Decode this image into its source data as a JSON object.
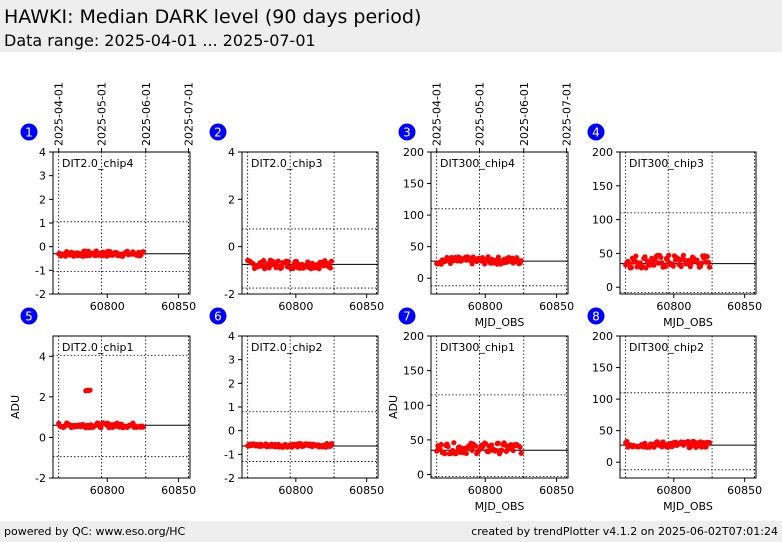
{
  "header": {
    "title": "HAWKI: Median DARK level (90 days period)",
    "subtitle": "Data range: 2025-04-01 ... 2025-07-01"
  },
  "footer": {
    "left": "powered by QC: www.eso.org/HC",
    "right": "created by trendPlotter v4.1.2 on 2025-06-02T07:01:24"
  },
  "colors": {
    "points": "#ff0000",
    "badge": "#0000ff",
    "header_bg": "#eeeeee"
  },
  "chart_data": [
    {
      "type": "scatter",
      "panel": "1",
      "title": "DIT2.0_chip4",
      "xlabel": "",
      "ylabel": "",
      "xlim": [
        60762,
        60858
      ],
      "ylim": [
        -2,
        4
      ],
      "xticks": [
        60800,
        60850
      ],
      "yticks": [
        -2,
        -1,
        0,
        1,
        2,
        3,
        4
      ],
      "top_ticks": [
        "2025-04-01",
        "2025-05-01",
        "2025-06-01",
        "2025-07-01"
      ],
      "top_tick_mjd": [
        60766,
        60796,
        60827,
        60857
      ],
      "median": -0.3,
      "band": [
        -1.05,
        1.05
      ],
      "x_range": [
        60766,
        60826
      ],
      "points": {
        "center": -0.3,
        "spread": 0.12
      }
    },
    {
      "type": "scatter",
      "panel": "2",
      "title": "DIT2.0_chip3",
      "xlabel": "",
      "ylabel": "",
      "xlim": [
        60762,
        60858
      ],
      "ylim": [
        -2,
        4
      ],
      "xticks": [
        60800,
        60850
      ],
      "yticks": [
        -2,
        0,
        2,
        4
      ],
      "median": -0.75,
      "band": [
        -1.75,
        0.75
      ],
      "x_range": [
        60766,
        60826
      ],
      "points": {
        "center": -0.75,
        "spread": 0.18
      }
    },
    {
      "type": "scatter",
      "panel": "3",
      "title": "DIT300_chip4",
      "xlabel": "MJD_OBS",
      "ylabel": "",
      "xlim": [
        60762,
        60858
      ],
      "ylim": [
        -25,
        200
      ],
      "xticks": [
        60800,
        60850
      ],
      "yticks": [
        0,
        50,
        100,
        150,
        200
      ],
      "top_ticks": [
        "2025-04-01",
        "2025-05-01",
        "2025-06-01",
        "2025-07-01"
      ],
      "top_tick_mjd": [
        60766,
        60796,
        60827,
        60857
      ],
      "median": 27,
      "band": [
        -12,
        110
      ],
      "x_range": [
        60766,
        60826
      ],
      "points": {
        "center": 28,
        "spread": 6
      }
    },
    {
      "type": "scatter",
      "panel": "4",
      "title": "DIT300_chip3",
      "xlabel": "MJD_OBS",
      "ylabel": "",
      "xlim": [
        60762,
        60858
      ],
      "ylim": [
        -10,
        200
      ],
      "xticks": [
        60800,
        60850
      ],
      "yticks": [
        0,
        50,
        100,
        150,
        200
      ],
      "median": 35,
      "band": [
        -8,
        110
      ],
      "x_range": [
        60766,
        60826
      ],
      "points": {
        "center": 38,
        "spread": 10
      }
    },
    {
      "type": "scatter",
      "panel": "5",
      "title": "DIT2.0_chip1",
      "xlabel": "",
      "ylabel": "ADU",
      "xlim": [
        60762,
        60858
      ],
      "ylim": [
        -2,
        5
      ],
      "xticks": [
        60800,
        60850
      ],
      "yticks": [
        -2,
        0,
        2,
        4
      ],
      "median": 0.6,
      "band": [
        -0.95,
        4.05
      ],
      "x_range": [
        60766,
        60826
      ],
      "points": {
        "center": 0.6,
        "spread": 0.12
      },
      "outliers": [
        [
          60785,
          2.3
        ],
        [
          60786,
          2.32
        ],
        [
          60787,
          2.31
        ],
        [
          60788,
          2.33
        ]
      ]
    },
    {
      "type": "scatter",
      "panel": "6",
      "title": "DIT2.0_chip2",
      "xlabel": "",
      "ylabel": "",
      "xlim": [
        60762,
        60858
      ],
      "ylim": [
        -2,
        4
      ],
      "xticks": [
        60800,
        60850
      ],
      "yticks": [
        -2,
        -1,
        0,
        1,
        2,
        3,
        4
      ],
      "median": -0.65,
      "band": [
        -1.3,
        0.8
      ],
      "x_range": [
        60766,
        60826
      ],
      "points": {
        "center": -0.62,
        "spread": 0.08
      }
    },
    {
      "type": "scatter",
      "panel": "7",
      "title": "DIT300_chip1",
      "xlabel": "MJD_OBS",
      "ylabel": "ADU",
      "xlim": [
        60762,
        60858
      ],
      "ylim": [
        -5,
        200
      ],
      "xticks": [
        60800,
        60850
      ],
      "yticks": [
        0,
        50,
        100,
        150,
        200
      ],
      "median": 35,
      "band": [
        -3,
        115
      ],
      "x_range": [
        60766,
        60826
      ],
      "points": {
        "center": 38,
        "spread": 8
      }
    },
    {
      "type": "scatter",
      "panel": "8",
      "title": "DIT300_chip2",
      "xlabel": "MJD_OBS",
      "ylabel": "",
      "xlim": [
        60762,
        60858
      ],
      "ylim": [
        -25,
        200
      ],
      "xticks": [
        60800,
        60850
      ],
      "yticks": [
        0,
        50,
        100,
        150,
        200
      ],
      "median": 27,
      "band": [
        -12,
        110
      ],
      "x_range": [
        60766,
        60826
      ],
      "points": {
        "center": 28,
        "spread": 5
      }
    }
  ]
}
